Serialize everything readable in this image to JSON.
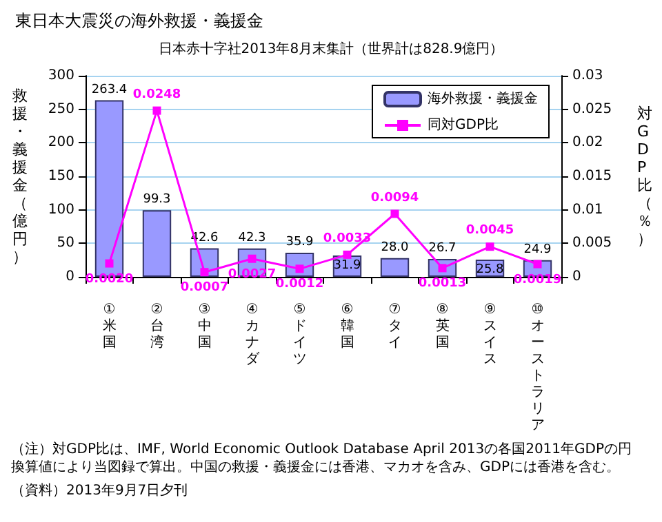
{
  "chart_data": {
    "type": "bar",
    "title": "東日本大震災の海外救援・義援金",
    "subtitle": "日本赤十字社2013年8月末集計（世界計は828.9億円）",
    "ylabel": "救援・義援金（億円）",
    "y2label": "対GDP比（％）",
    "categories": [
      "①米国",
      "②台湾",
      "③中国",
      "④カナダ",
      "⑤ドイツ",
      "⑥韓国",
      "⑦タイ",
      "⑧英国",
      "⑨スイス",
      "⑩オーストラリア"
    ],
    "series": [
      {
        "name": "海外救援・義援金",
        "color": "#9999ff",
        "values": [
          263.4,
          99.3,
          42.6,
          42.3,
          35.9,
          31.9,
          28.0,
          26.7,
          25.8,
          24.9
        ],
        "value_labels": [
          "263.4",
          "99.3",
          "42.6",
          "42.3",
          "35.9",
          "31.9",
          "28.0",
          "26.7",
          "25.8",
          "24.9"
        ]
      },
      {
        "name": "同対GDP比",
        "type": "line",
        "axis": "y2",
        "color": "#ff00ff",
        "marker": "square",
        "values": [
          0.002,
          0.0248,
          0.0007,
          0.0027,
          0.0012,
          0.0033,
          0.0094,
          0.0013,
          0.0045,
          0.0019
        ],
        "value_labels": [
          "0.0020",
          "0.0248",
          "0.0007",
          "0.0027",
          "0.0012",
          "0.0033",
          "0.0094",
          "0.0013",
          "0.0045",
          "0.0019"
        ]
      }
    ],
    "ylim": [
      0,
      300
    ],
    "yticks": [
      0,
      50,
      100,
      150,
      200,
      250,
      300
    ],
    "y2lim": [
      0,
      0.03
    ],
    "y2ticks": [
      0,
      0.005,
      0.01,
      0.015,
      0.02,
      0.025,
      0.03
    ],
    "grid": "y",
    "legend": "top right",
    "annotations": [
      "（注）対GDP比は、IMF, World Economic Outlook Database April 2013の各国2011年GDPの円換算値により当図録で算出。中国の救援・義援金には香港、マカオを含み、GDPには香港を含む。",
      "（資料）2013年9月7日夕刊"
    ]
  }
}
